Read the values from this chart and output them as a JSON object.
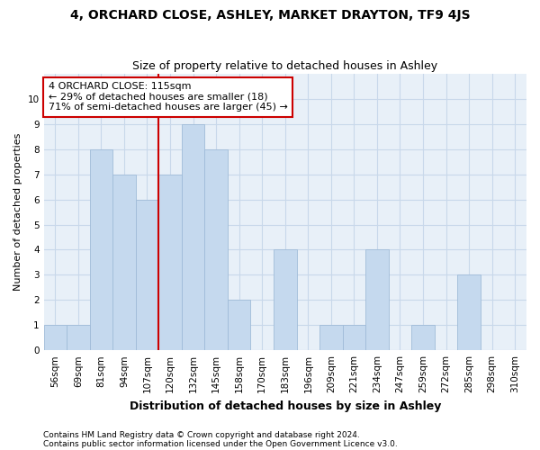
{
  "title1": "4, ORCHARD CLOSE, ASHLEY, MARKET DRAYTON, TF9 4JS",
  "title2": "Size of property relative to detached houses in Ashley",
  "xlabel": "Distribution of detached houses by size in Ashley",
  "ylabel": "Number of detached properties",
  "categories": [
    "56sqm",
    "69sqm",
    "81sqm",
    "94sqm",
    "107sqm",
    "120sqm",
    "132sqm",
    "145sqm",
    "158sqm",
    "170sqm",
    "183sqm",
    "196sqm",
    "209sqm",
    "221sqm",
    "234sqm",
    "247sqm",
    "259sqm",
    "272sqm",
    "285sqm",
    "298sqm",
    "310sqm"
  ],
  "values": [
    1,
    1,
    8,
    7,
    6,
    7,
    9,
    8,
    2,
    0,
    4,
    0,
    1,
    1,
    4,
    0,
    1,
    0,
    3,
    0,
    0
  ],
  "bar_color": "#c5d9ee",
  "bar_edge_color": "#a0bcd8",
  "grid_color": "#c8d8ea",
  "background_color": "#e8f0f8",
  "annotation_text": "4 ORCHARD CLOSE: 115sqm\n← 29% of detached houses are smaller (18)\n71% of semi-detached houses are larger (45) →",
  "annotation_box_color": "#ffffff",
  "annotation_box_edge": "#cc0000",
  "vline_x": 5,
  "vline_color": "#cc0000",
  "ylim": [
    0,
    11
  ],
  "yticks": [
    0,
    1,
    2,
    3,
    4,
    5,
    6,
    7,
    8,
    9,
    10,
    11
  ],
  "footer1": "Contains HM Land Registry data © Crown copyright and database right 2024.",
  "footer2": "Contains public sector information licensed under the Open Government Licence v3.0.",
  "title1_fontsize": 10,
  "title2_fontsize": 9,
  "xlabel_fontsize": 9,
  "ylabel_fontsize": 8,
  "tick_fontsize": 7.5,
  "annotation_fontsize": 8,
  "footer_fontsize": 6.5
}
